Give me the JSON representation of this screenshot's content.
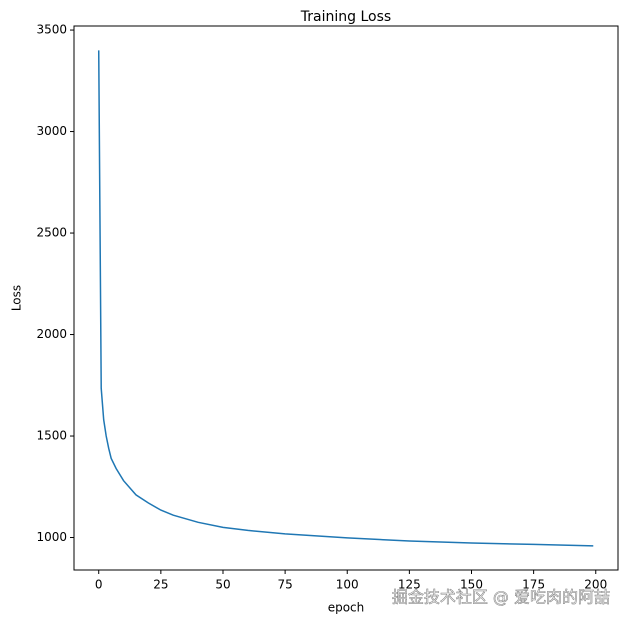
{
  "chart_data": {
    "type": "line",
    "title": "Training Loss",
    "x_label": "epoch",
    "y_label": "Loss",
    "annotation": "掘金技术社区 @ 爱吃肉的阿喆",
    "x": [
      0,
      1,
      2,
      3,
      4,
      5,
      7,
      10,
      15,
      20,
      25,
      30,
      40,
      50,
      60,
      75,
      100,
      125,
      150,
      175,
      199
    ],
    "series": [
      {
        "name": "loss",
        "color": "#1f77b4",
        "values": [
          3400,
          1735,
          1580,
          1500,
          1440,
          1390,
          1340,
          1280,
          1210,
          1170,
          1135,
          1110,
          1075,
          1050,
          1035,
          1018,
          998,
          983,
          973,
          966,
          959
        ]
      }
    ],
    "xlim": [
      -9.95,
      208.95
    ],
    "ylim": [
      840,
      3520
    ],
    "xticks": [
      0,
      25,
      50,
      75,
      100,
      125,
      150,
      175,
      200
    ],
    "yticks": [
      1000,
      1500,
      2000,
      2500,
      3000,
      3500
    ]
  }
}
